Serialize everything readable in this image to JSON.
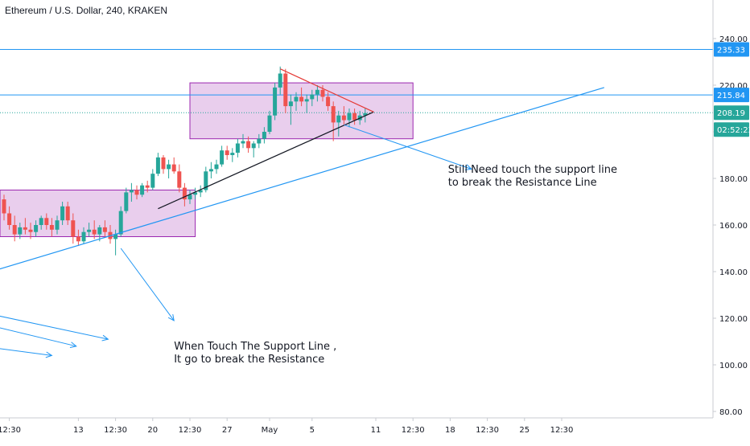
{
  "chart_title": "Ethereum / U.S. Dollar, 240, KRAKEN",
  "chart_data": {
    "type": "candlestick",
    "symbol": "Ethereum / U.S. Dollar",
    "interval": "240",
    "exchange": "KRAKEN",
    "ylim": [
      78,
      250
    ],
    "x_range": [
      "Apr 6",
      "May 27"
    ],
    "y_ticks": [
      "80.00",
      "100.00",
      "120.00",
      "140.00",
      "160.00",
      "180.00",
      "200.00",
      "220.00",
      "240.00"
    ],
    "x_ticks": [
      {
        "label": "12:30",
        "day": 0.5
      },
      {
        "label": "13",
        "day": 7
      },
      {
        "label": "12:30",
        "day": 10.5
      },
      {
        "label": "20",
        "day": 14
      },
      {
        "label": "12:30",
        "day": 17.5
      },
      {
        "label": "27",
        "day": 21
      },
      {
        "label": "May",
        "day": 25
      },
      {
        "label": "5",
        "day": 29
      },
      {
        "label": "11",
        "day": 35
      },
      {
        "label": "12:30",
        "day": 38.5
      },
      {
        "label": "18",
        "day": 42
      },
      {
        "label": "12:30",
        "day": 45.5
      },
      {
        "label": "25",
        "day": 49
      },
      {
        "label": "12:30",
        "day": 52.5
      }
    ],
    "price_labels": [
      {
        "text": "235.33",
        "value": 235.33,
        "kind": "line"
      },
      {
        "text": "215.84",
        "value": 215.84,
        "kind": "line"
      },
      {
        "text": "208.19",
        "value": 208.19,
        "kind": "last"
      },
      {
        "text": "02:52:23",
        "value": 208.19,
        "kind": "countdown"
      }
    ],
    "horizontal_lines": [
      {
        "value": 235.33,
        "style": "solid",
        "color": "#2196f3"
      },
      {
        "value": 215.84,
        "style": "solid",
        "color": "#2196f3"
      },
      {
        "value": 208.19,
        "style": "dotted",
        "color": "#26a69a"
      }
    ],
    "candles": [
      [
        0.0,
        171,
        173,
        162,
        165
      ],
      [
        0.5,
        165,
        168,
        158,
        160
      ],
      [
        1.0,
        160,
        164,
        153,
        156
      ],
      [
        1.5,
        156,
        161,
        154,
        159
      ],
      [
        2.0,
        159,
        163,
        156,
        158
      ],
      [
        2.5,
        158,
        161,
        154,
        157
      ],
      [
        3.0,
        157,
        162,
        155,
        160
      ],
      [
        3.5,
        160,
        164,
        158,
        163
      ],
      [
        4.0,
        163,
        165,
        158,
        160
      ],
      [
        4.5,
        160,
        163,
        155,
        158
      ],
      [
        5.0,
        158,
        164,
        156,
        162
      ],
      [
        5.5,
        162,
        170,
        160,
        168
      ],
      [
        6.0,
        168,
        170,
        160,
        162
      ],
      [
        6.5,
        162,
        165,
        152,
        155
      ],
      [
        7.0,
        155,
        158,
        151,
        153
      ],
      [
        7.5,
        153,
        159,
        152,
        157
      ],
      [
        8.0,
        157,
        161,
        155,
        158
      ],
      [
        8.5,
        158,
        162,
        154,
        156
      ],
      [
        9.0,
        156,
        160,
        153,
        159
      ],
      [
        9.5,
        159,
        162,
        155,
        157
      ],
      [
        10.0,
        157,
        160,
        152,
        154
      ],
      [
        10.5,
        154,
        158,
        147,
        156
      ],
      [
        11.0,
        156,
        168,
        155,
        166
      ],
      [
        11.5,
        166,
        176,
        165,
        174
      ],
      [
        12.0,
        174,
        178,
        170,
        175
      ],
      [
        12.5,
        175,
        177,
        171,
        173
      ],
      [
        13.0,
        173,
        178,
        172,
        177
      ],
      [
        13.5,
        177,
        179,
        174,
        176
      ],
      [
        14.0,
        176,
        184,
        175,
        182
      ],
      [
        14.5,
        182,
        191,
        181,
        189
      ],
      [
        15.0,
        189,
        190,
        182,
        184
      ],
      [
        15.5,
        184,
        188,
        180,
        186
      ],
      [
        16.0,
        186,
        189,
        182,
        183
      ],
      [
        16.5,
        183,
        186,
        174,
        176
      ],
      [
        17.0,
        176,
        178,
        168,
        171
      ],
      [
        17.5,
        171,
        175,
        169,
        173
      ],
      [
        18.0,
        173,
        176,
        171,
        174
      ],
      [
        18.5,
        174,
        177,
        172,
        175
      ],
      [
        19.0,
        175,
        185,
        174,
        183
      ],
      [
        19.5,
        183,
        187,
        180,
        184
      ],
      [
        20.0,
        184,
        188,
        182,
        186
      ],
      [
        20.5,
        186,
        194,
        185,
        192
      ],
      [
        21.0,
        192,
        194,
        188,
        190
      ],
      [
        21.5,
        190,
        193,
        187,
        191
      ],
      [
        22.0,
        191,
        197,
        189,
        195
      ],
      [
        22.5,
        195,
        199,
        193,
        196
      ],
      [
        23.0,
        196,
        198,
        191,
        193
      ],
      [
        23.5,
        193,
        196,
        189,
        195
      ],
      [
        24.0,
        195,
        199,
        193,
        197
      ],
      [
        24.5,
        197,
        202,
        195,
        200
      ],
      [
        25.0,
        200,
        209,
        199,
        207
      ],
      [
        25.5,
        207,
        221,
        205,
        219
      ],
      [
        26.0,
        219,
        228,
        216,
        225
      ],
      [
        26.5,
        225,
        227,
        208,
        211
      ],
      [
        27.0,
        211,
        216,
        203,
        213
      ],
      [
        27.5,
        213,
        217,
        209,
        215
      ],
      [
        28.0,
        215,
        219,
        211,
        213
      ],
      [
        28.5,
        213,
        216,
        208,
        214
      ],
      [
        29.0,
        214,
        218,
        211,
        216
      ],
      [
        29.5,
        216,
        220,
        213,
        218
      ],
      [
        30.0,
        218,
        220,
        213,
        215
      ],
      [
        30.5,
        215,
        217,
        209,
        211
      ],
      [
        31.0,
        211,
        213,
        196,
        204
      ],
      [
        31.5,
        204,
        209,
        198,
        207
      ],
      [
        32.0,
        207,
        211,
        203,
        205
      ],
      [
        32.5,
        205,
        210,
        202,
        208
      ],
      [
        33.0,
        208,
        210,
        203,
        205
      ],
      [
        33.5,
        205,
        209,
        203,
        207
      ],
      [
        34.0,
        207,
        210,
        204,
        208
      ]
    ]
  },
  "drawings": {
    "boxes": [
      {
        "name": "consolidation-box-april",
        "x1_day": -0.5,
        "x2_day": 18.0,
        "y_top": 175,
        "y_bottom": 155
      },
      {
        "name": "consolidation-box-may",
        "x1_day": 17.5,
        "x2_day": 38.5,
        "y_top": 221,
        "y_bottom": 197
      }
    ],
    "trendlines": [
      {
        "name": "support-trendline-long",
        "color": "#2196f3",
        "x1_day": -0.5,
        "y1": 141,
        "x2_day": 56.5,
        "y2": 219
      },
      {
        "name": "support-trendline-short",
        "color": "#131722",
        "x1_day": 14.5,
        "y1": 167,
        "x2_day": 34.8,
        "y2": 208.5
      },
      {
        "name": "resistance-trendline",
        "color": "#e53935",
        "x1_day": 26.0,
        "y1": 227,
        "x2_day": 34.8,
        "y2": 208.5
      }
    ],
    "arrows": [
      {
        "name": "arrow-to-note-top",
        "x1_day": 32.0,
        "y1": 203,
        "x2_day": 44.0,
        "y2": 184
      },
      {
        "name": "arrow-to-note-bottom",
        "x1_day": 11.0,
        "y1": 150,
        "x2_day": 16.0,
        "y2": 119
      },
      {
        "name": "arrow-left-1",
        "x1_day": -0.5,
        "y1": 121,
        "x2_day": 9.8,
        "y2": 111
      },
      {
        "name": "arrow-left-2",
        "x1_day": -0.5,
        "y1": 116,
        "x2_day": 6.8,
        "y2": 108
      },
      {
        "name": "arrow-left-3",
        "x1_day": -0.5,
        "y1": 107,
        "x2_day": 4.5,
        "y2": 104
      }
    ],
    "notes": [
      {
        "name": "note-top",
        "lines": [
          "Still Need touch the support line",
          "to break the Resistance Line"
        ],
        "day": 41.8,
        "price": 182.5
      },
      {
        "name": "note-bottom",
        "lines": [
          "When Touch The Support Line ,",
          "It go to break the Resistance"
        ],
        "day": 16.0,
        "price": 106.5
      }
    ]
  },
  "colors": {
    "up": "#26a69a",
    "down": "#ef5350",
    "box_fill": "#e1bee7",
    "box_stroke": "#9c27b0",
    "line_blue": "#2196f3",
    "axis_text": "#131722",
    "last_price": "#26a69a",
    "countdown": "#26a69a"
  }
}
